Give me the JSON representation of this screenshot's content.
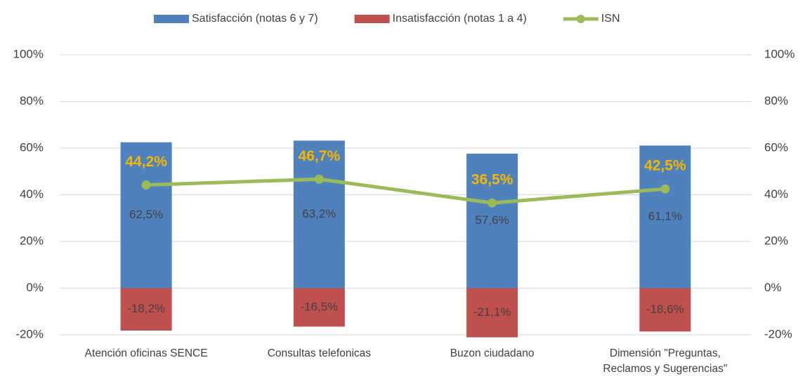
{
  "chart_data": {
    "type": "bar",
    "categories": [
      "Atención oficinas SENCE",
      "Consultas telefonicas",
      "Buzon ciudadano",
      "Dimensión \"Preguntas, Reclamos y Sugerencias\""
    ],
    "series": [
      {
        "name": "Satisfacción (notas 6 y 7)",
        "color": "#4f81bd",
        "type": "bar",
        "values": [
          62.5,
          63.2,
          57.6,
          61.1
        ],
        "value_labels": [
          "62,5%",
          "63,2%",
          "57,6%",
          "61,1%"
        ]
      },
      {
        "name": "Insatisfacción (notas 1 a 4)",
        "color": "#c0504d",
        "type": "bar",
        "values": [
          -18.2,
          -16.5,
          -21.1,
          -18.6
        ],
        "value_labels": [
          "-18,2%",
          "-16,5%",
          "-21,1%",
          "-18,6%"
        ]
      },
      {
        "name": "ISN",
        "color": "#9bbb59",
        "type": "line",
        "axis": "y2",
        "label_color": "#f5b800",
        "values": [
          44.2,
          46.7,
          36.5,
          42.5
        ],
        "value_labels": [
          "44,2%",
          "46,7%",
          "36,5%",
          "42,5%"
        ]
      }
    ],
    "ylim": [
      -20,
      100
    ],
    "yticks": [
      {
        "value": -20,
        "label": "-20%"
      },
      {
        "value": 0,
        "label": "0%"
      },
      {
        "value": 20,
        "label": "20%"
      },
      {
        "value": 40,
        "label": "40%"
      },
      {
        "value": 60,
        "label": "60%"
      },
      {
        "value": 80,
        "label": "80%"
      },
      {
        "value": 100,
        "label": "100%"
      }
    ],
    "y2lim": [
      -20,
      100
    ],
    "y2ticks": [
      {
        "value": -20,
        "label": "-20%"
      },
      {
        "value": 0,
        "label": "0%"
      },
      {
        "value": 20,
        "label": "20%"
      },
      {
        "value": 40,
        "label": "40%"
      },
      {
        "value": 60,
        "label": "60%"
      },
      {
        "value": 80,
        "label": "80%"
      },
      {
        "value": 100,
        "label": "100%"
      }
    ],
    "grid": true,
    "legend": "top",
    "stacked": true
  }
}
